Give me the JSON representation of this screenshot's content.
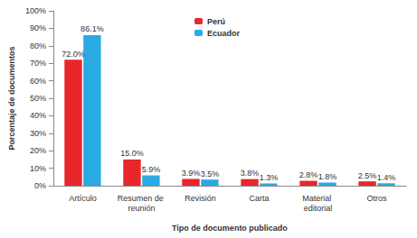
{
  "chart_data": {
    "type": "bar",
    "x_label": "Tipo de documento publicado",
    "y_label": "Porcentaje de documentos",
    "categories": [
      "Artículo",
      "Resumen de reunión",
      "Revisión",
      "Carta",
      "Material editorial",
      "Otros"
    ],
    "series": [
      {
        "name": "Perú",
        "color": "#e8262b",
        "values": [
          72.0,
          15.0,
          3.9,
          3.8,
          2.8,
          2.5
        ],
        "value_labels": [
          "72.0%",
          "15.0%",
          "3.9%",
          "3.8%",
          "2.8%",
          "2.5%"
        ]
      },
      {
        "name": "Ecuador",
        "color": "#2aaae2",
        "values": [
          86.1,
          5.9,
          3.5,
          1.3,
          1.8,
          1.4
        ],
        "value_labels": [
          "86.1%",
          "5.9%",
          "3.5%",
          "1.3%",
          "1.8%",
          "1.4%"
        ]
      }
    ],
    "ylim": [
      0,
      100
    ],
    "yticks": [
      {
        "value": 0,
        "label": "0%"
      },
      {
        "value": 10,
        "label": "10%"
      },
      {
        "value": 20,
        "label": "20%"
      },
      {
        "value": 30,
        "label": "30%"
      },
      {
        "value": 40,
        "label": "40%"
      },
      {
        "value": 50,
        "label": "50%"
      },
      {
        "value": 60,
        "label": "60%"
      },
      {
        "value": 70,
        "label": "70%"
      },
      {
        "value": 80,
        "label": "80%"
      },
      {
        "value": 90,
        "label": "90%"
      },
      {
        "value": 100,
        "label": "100%"
      }
    ],
    "grid": false,
    "legend": "top",
    "data_labels": true
  }
}
